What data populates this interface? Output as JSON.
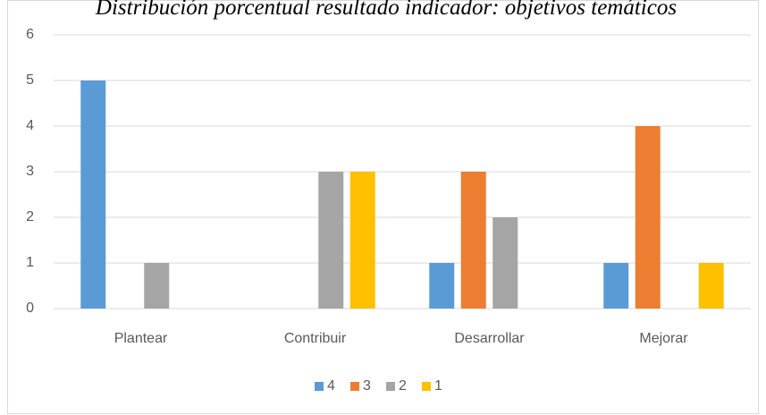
{
  "chart_data": {
    "type": "bar",
    "title": "Distribución porcentual resultado indicador: objetivos temáticos",
    "categories": [
      "Plantear",
      "Contribuir",
      "Desarrollar",
      "Mejorar"
    ],
    "series": [
      {
        "name": "4",
        "color": "#5b9bd5",
        "values": [
          5,
          0,
          1,
          1
        ]
      },
      {
        "name": "3",
        "color": "#ed7d31",
        "values": [
          0,
          0,
          3,
          4
        ]
      },
      {
        "name": "2",
        "color": "#a5a5a5",
        "values": [
          1,
          3,
          2,
          0
        ]
      },
      {
        "name": "1",
        "color": "#ffc000",
        "values": [
          0,
          3,
          0,
          1
        ]
      }
    ],
    "ylim": [
      0,
      6
    ],
    "yticks": [
      0,
      1,
      2,
      3,
      4,
      5,
      6
    ],
    "grid": true,
    "legend": "bottom"
  }
}
